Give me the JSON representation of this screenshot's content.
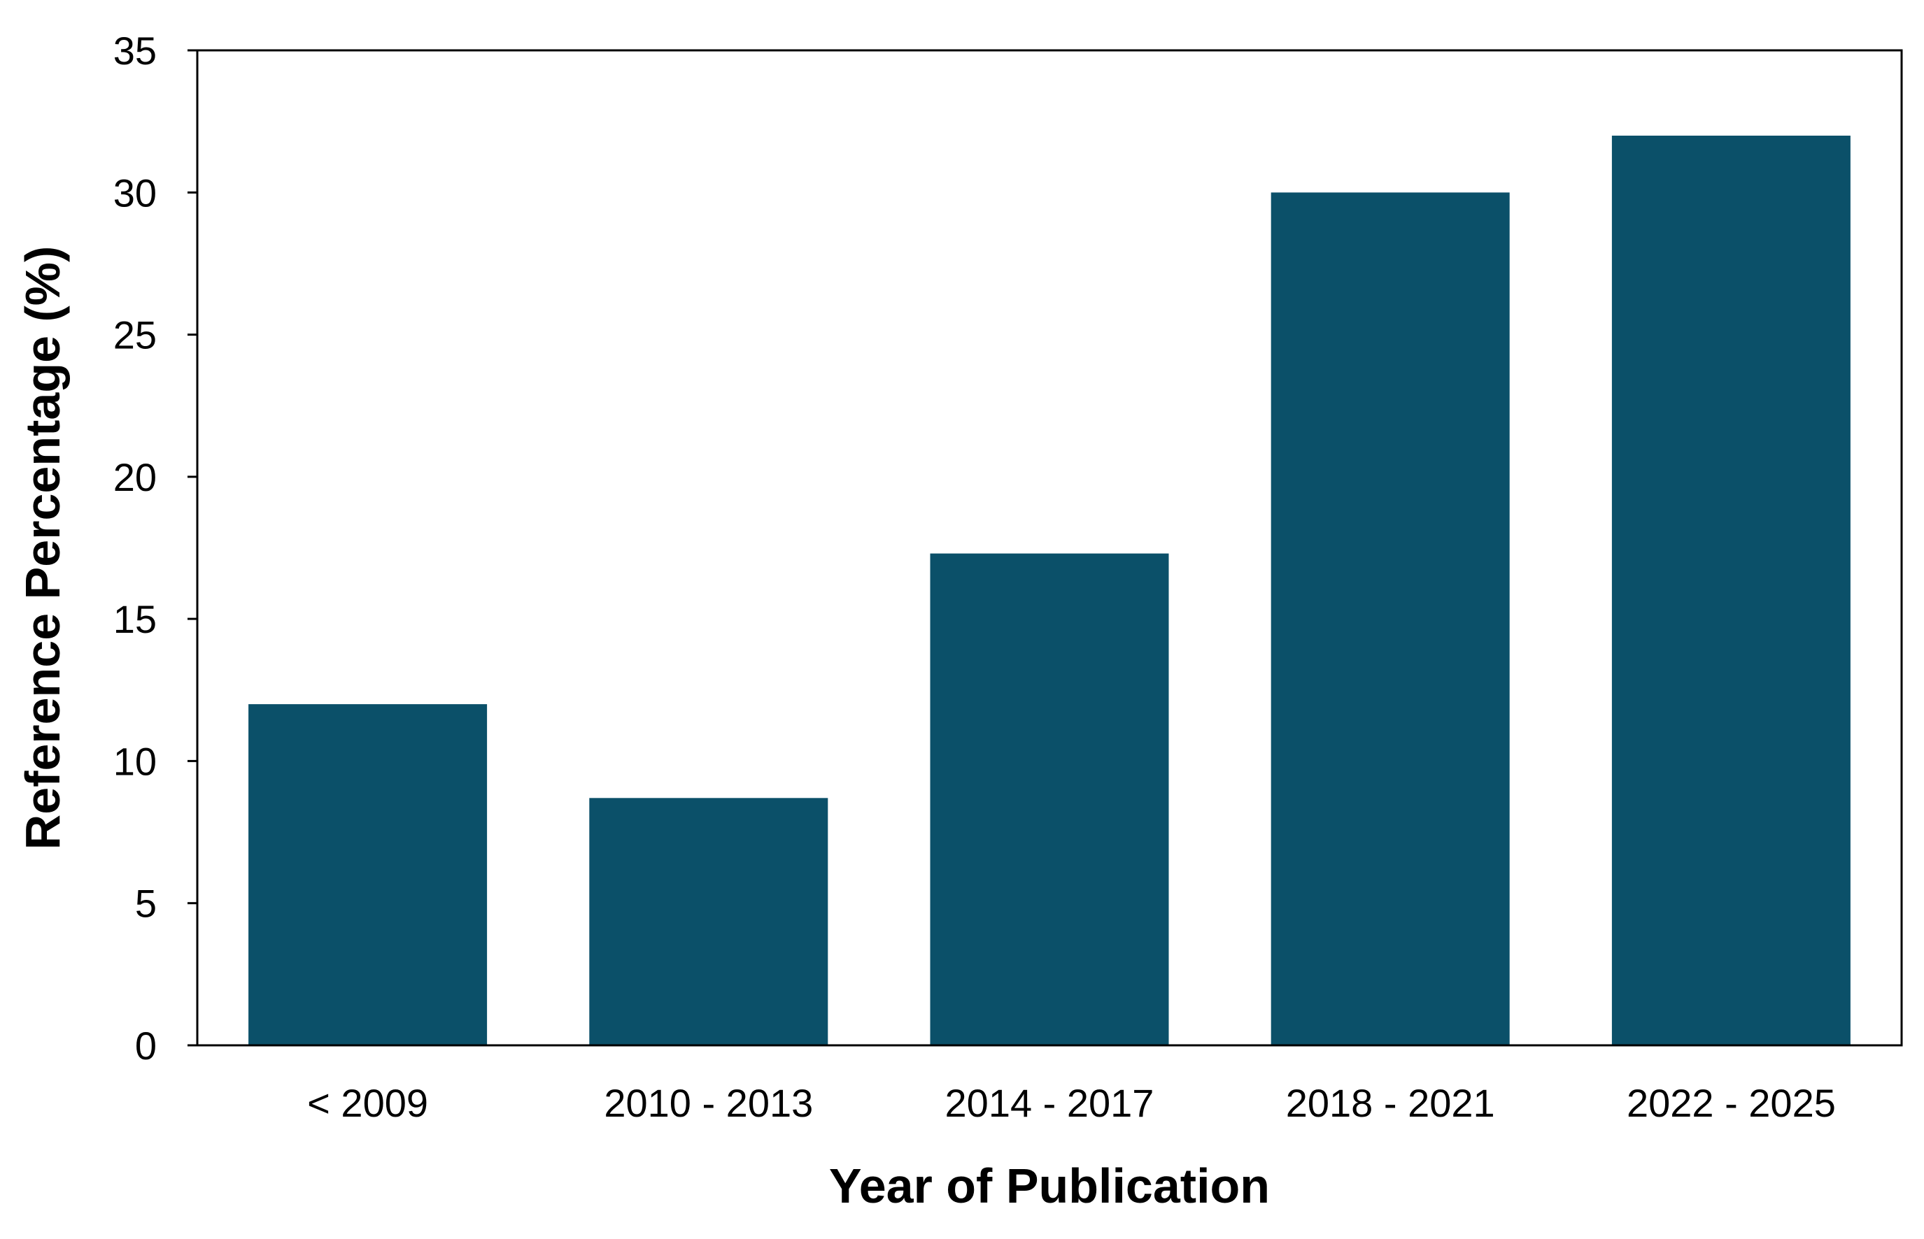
{
  "chart_data": {
    "type": "bar",
    "title": "",
    "xlabel": "Year of Publication",
    "ylabel": "Reference Percentage (%)",
    "categories": [
      "< 2009",
      "2010 - 2013",
      "2014 - 2017",
      "2018 - 2021",
      "2022 - 2025"
    ],
    "values": [
      12.0,
      8.7,
      17.3,
      30.0,
      32.0
    ],
    "ylim": [
      0,
      35
    ],
    "yticks": [
      0,
      5,
      10,
      15,
      20,
      25,
      30,
      35
    ],
    "grid": false,
    "legend": "none",
    "bar_color": "#0b5069"
  }
}
